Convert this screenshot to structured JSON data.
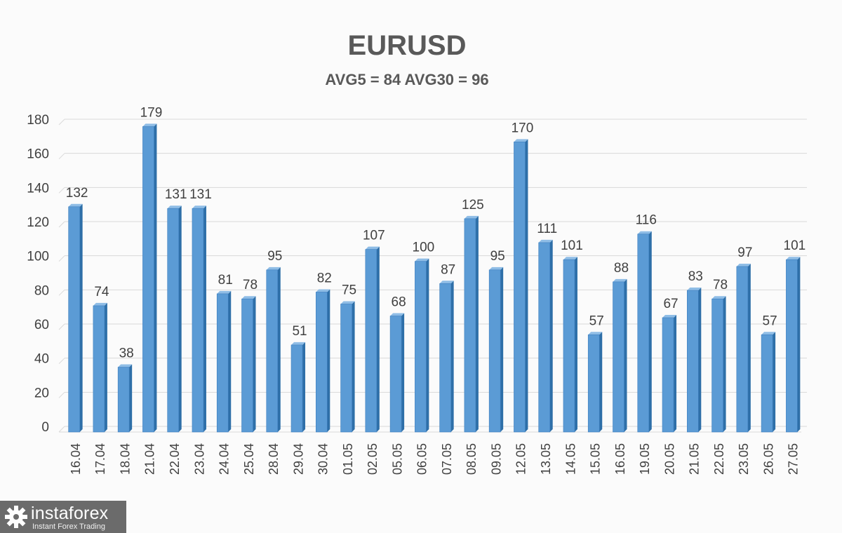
{
  "colors": {
    "bar_front": "#5b9bd5",
    "bar_side": "#2e6fa8",
    "bar_top": "#8fbde6",
    "grid": "#d9d9d9",
    "text": "#404040",
    "title": "#595959"
  },
  "chart_data": {
    "type": "bar",
    "title": "EURUSD",
    "subtitle": "AVG5 = 84 AVG30 = 96",
    "xlabel": "",
    "ylabel": "",
    "ylim": [
      0,
      180
    ],
    "yticks": [
      0,
      20,
      40,
      60,
      80,
      100,
      120,
      140,
      160,
      180
    ],
    "grid": true,
    "categories": [
      "16.04",
      "17.04",
      "18.04",
      "21.04",
      "22.04",
      "23.04",
      "24.04",
      "25.04",
      "28.04",
      "29.04",
      "30.04",
      "01.05",
      "02.05",
      "05.05",
      "06.05",
      "07.05",
      "08.05",
      "09.05",
      "12.05",
      "13.05",
      "14.05",
      "15.05",
      "16.05",
      "19.05",
      "20.05",
      "21.05",
      "22.05",
      "23.05",
      "26.05",
      "27.05"
    ],
    "values": [
      132,
      74,
      38,
      179,
      131,
      131,
      81,
      78,
      95,
      51,
      82,
      75,
      107,
      68,
      100,
      87,
      125,
      95,
      170,
      111,
      101,
      57,
      88,
      116,
      67,
      83,
      78,
      97,
      57,
      101
    ]
  },
  "logo": {
    "brand": "instaforex",
    "tagline": "Instant Forex Trading",
    "icon": "gear-icon"
  }
}
